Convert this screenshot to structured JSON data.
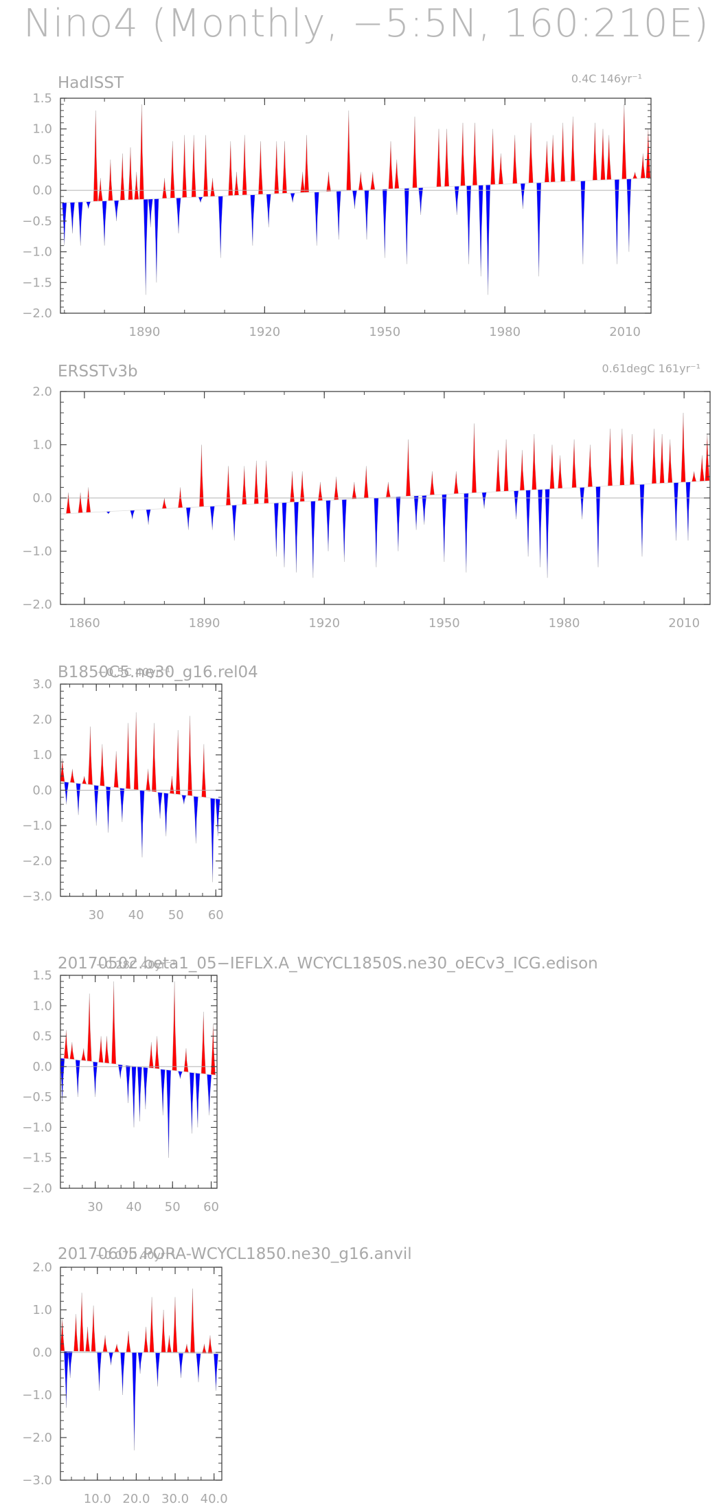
{
  "title": "Nino4 (Monthly, −5:5N, 160:210E)",
  "colors": {
    "positive": "#ff0000",
    "negative": "#0000ff",
    "axis": "#444444",
    "text": "#a8a8a8",
    "zero_line": "#b0b0b0"
  },
  "chart_data": [
    {
      "type": "area",
      "title": "HadISST",
      "trend_label": "0.4C 146yr⁻¹",
      "xlim": [
        1869,
        2016.5
      ],
      "ylim": [
        -2.0,
        1.5
      ],
      "xticks": [
        1890,
        1920,
        1950,
        1980,
        2010
      ],
      "xticklabels": [
        "1890",
        "1920",
        "1950",
        "1980",
        "2010"
      ],
      "yticks": [
        -2.0,
        -1.5,
        -1.0,
        -0.5,
        0.0,
        0.5,
        1.0,
        1.5
      ],
      "yticklabels": [
        "−2.0",
        "−1.5",
        "−1.0",
        "−0.5",
        "0.0",
        "0.5",
        "1.0",
        "1.5"
      ],
      "trend": {
        "x": [
          1870,
          2016
        ],
        "y": [
          -0.2,
          0.2
        ]
      },
      "series": [
        {
          "x": 1870,
          "y": -0.9
        },
        {
          "x": 1872,
          "y": -0.7
        },
        {
          "x": 1874,
          "y": -0.9
        },
        {
          "x": 1876,
          "y": -0.3
        },
        {
          "x": 1877.8,
          "y": 1.3
        },
        {
          "x": 1879,
          "y": 0.2
        },
        {
          "x": 1880,
          "y": -0.9
        },
        {
          "x": 1881.5,
          "y": 0.5
        },
        {
          "x": 1883,
          "y": -0.5
        },
        {
          "x": 1884.5,
          "y": 0.6
        },
        {
          "x": 1886.5,
          "y": 0.7
        },
        {
          "x": 1888,
          "y": 0.3
        },
        {
          "x": 1889.3,
          "y": 1.4
        },
        {
          "x": 1890.3,
          "y": -1.7
        },
        {
          "x": 1891.5,
          "y": -0.6
        },
        {
          "x": 1893,
          "y": -1.5
        },
        {
          "x": 1895,
          "y": 0.2
        },
        {
          "x": 1897,
          "y": 0.8
        },
        {
          "x": 1898.5,
          "y": -0.7
        },
        {
          "x": 1900,
          "y": 0.9
        },
        {
          "x": 1902.3,
          "y": 0.9
        },
        {
          "x": 1904,
          "y": -0.2
        },
        {
          "x": 1905.3,
          "y": 0.9
        },
        {
          "x": 1907,
          "y": 0.2
        },
        {
          "x": 1909,
          "y": -1.1
        },
        {
          "x": 1911.5,
          "y": 0.8
        },
        {
          "x": 1913,
          "y": 0.3
        },
        {
          "x": 1915,
          "y": 0.9
        },
        {
          "x": 1917,
          "y": -0.9
        },
        {
          "x": 1919,
          "y": 0.8
        },
        {
          "x": 1921,
          "y": -0.6
        },
        {
          "x": 1923,
          "y": 0.8
        },
        {
          "x": 1925,
          "y": 0.8
        },
        {
          "x": 1927,
          "y": -0.2
        },
        {
          "x": 1929.5,
          "y": 0.3
        },
        {
          "x": 1930.5,
          "y": 0.9
        },
        {
          "x": 1933,
          "y": -0.9
        },
        {
          "x": 1936,
          "y": 0.3
        },
        {
          "x": 1938.5,
          "y": -0.8
        },
        {
          "x": 1941,
          "y": 1.3
        },
        {
          "x": 1942.5,
          "y": -0.3
        },
        {
          "x": 1944,
          "y": 0.3
        },
        {
          "x": 1945.5,
          "y": -0.8
        },
        {
          "x": 1947,
          "y": 0.3
        },
        {
          "x": 1950,
          "y": -1.1
        },
        {
          "x": 1951.5,
          "y": 0.8
        },
        {
          "x": 1953,
          "y": 0.5
        },
        {
          "x": 1955.5,
          "y": -1.2
        },
        {
          "x": 1957.5,
          "y": 1.2
        },
        {
          "x": 1959,
          "y": -0.4
        },
        {
          "x": 1963.5,
          "y": 1.0
        },
        {
          "x": 1965.5,
          "y": 1.0
        },
        {
          "x": 1968,
          "y": -0.4
        },
        {
          "x": 1969.5,
          "y": 1.1
        },
        {
          "x": 1971,
          "y": -1.2
        },
        {
          "x": 1972.5,
          "y": 1.1
        },
        {
          "x": 1974,
          "y": -1.4
        },
        {
          "x": 1975.8,
          "y": -1.7
        },
        {
          "x": 1977,
          "y": 1.0
        },
        {
          "x": 1979,
          "y": 0.6
        },
        {
          "x": 1982.5,
          "y": 0.9
        },
        {
          "x": 1984.5,
          "y": -0.3
        },
        {
          "x": 1986.5,
          "y": 1.1
        },
        {
          "x": 1988.5,
          "y": -1.4
        },
        {
          "x": 1990.5,
          "y": 0.8
        },
        {
          "x": 1992,
          "y": 0.9
        },
        {
          "x": 1994.5,
          "y": 1.1
        },
        {
          "x": 1997,
          "y": 1.2
        },
        {
          "x": 1999.5,
          "y": -1.2
        },
        {
          "x": 2002.5,
          "y": 1.1
        },
        {
          "x": 2004.5,
          "y": 1.0
        },
        {
          "x": 2006,
          "y": 0.9
        },
        {
          "x": 2008,
          "y": -1.2
        },
        {
          "x": 2009.8,
          "y": 1.4
        },
        {
          "x": 2011,
          "y": -1.0
        },
        {
          "x": 2012.5,
          "y": 0.3
        },
        {
          "x": 2014.5,
          "y": 0.6
        },
        {
          "x": 2015.8,
          "y": 1.0
        }
      ]
    },
    {
      "type": "area",
      "title": "ERSSTv3b",
      "trend_label": "0.61degC 161yr⁻¹",
      "xlim": [
        1854,
        2016.5
      ],
      "ylim": [
        -2.0,
        2.0
      ],
      "xticks": [
        1860,
        1890,
        1920,
        1950,
        1980,
        2010
      ],
      "xticklabels": [
        "1860",
        "1890",
        "1920",
        "1950",
        "1980",
        "2010"
      ],
      "yticks": [
        -2.0,
        -1.0,
        0.0,
        1.0,
        2.0
      ],
      "yticklabels": [
        "−2.0",
        "−1.0",
        "0.0",
        "1.0",
        "2.0"
      ],
      "trend": {
        "x": [
          1854,
          2016
        ],
        "y": [
          -0.3,
          0.32
        ]
      },
      "series": [
        {
          "x": 1855,
          "y": -0.3
        },
        {
          "x": 1856,
          "y": 0.1
        },
        {
          "x": 1859,
          "y": 0.1
        },
        {
          "x": 1861,
          "y": 0.2
        },
        {
          "x": 1866,
          "y": -0.3
        },
        {
          "x": 1872,
          "y": -0.4
        },
        {
          "x": 1876,
          "y": -0.5
        },
        {
          "x": 1880,
          "y": 0.0
        },
        {
          "x": 1884,
          "y": 0.2
        },
        {
          "x": 1886,
          "y": -0.6
        },
        {
          "x": 1889.3,
          "y": 1.0
        },
        {
          "x": 1892,
          "y": -0.6
        },
        {
          "x": 1896,
          "y": 0.6
        },
        {
          "x": 1897.5,
          "y": -0.8
        },
        {
          "x": 1900,
          "y": 0.6
        },
        {
          "x": 1903,
          "y": 0.7
        },
        {
          "x": 1905.5,
          "y": 0.7
        },
        {
          "x": 1908,
          "y": -1.1
        },
        {
          "x": 1910,
          "y": -1.3
        },
        {
          "x": 1912,
          "y": 0.5
        },
        {
          "x": 1913,
          "y": -1.4
        },
        {
          "x": 1914.5,
          "y": 0.5
        },
        {
          "x": 1917.2,
          "y": -1.5
        },
        {
          "x": 1919,
          "y": 0.3
        },
        {
          "x": 1921,
          "y": -1.0
        },
        {
          "x": 1923,
          "y": 0.4
        },
        {
          "x": 1925,
          "y": -1.2
        },
        {
          "x": 1927.5,
          "y": 0.3
        },
        {
          "x": 1930.5,
          "y": 0.6
        },
        {
          "x": 1933,
          "y": -1.3
        },
        {
          "x": 1936,
          "y": 0.3
        },
        {
          "x": 1938.5,
          "y": -1.0
        },
        {
          "x": 1941,
          "y": 1.1
        },
        {
          "x": 1943,
          "y": -0.6
        },
        {
          "x": 1945,
          "y": -0.5
        },
        {
          "x": 1947,
          "y": 0.5
        },
        {
          "x": 1950,
          "y": -1.2
        },
        {
          "x": 1953,
          "y": 0.5
        },
        {
          "x": 1955.5,
          "y": -1.4
        },
        {
          "x": 1957.5,
          "y": 1.4
        },
        {
          "x": 1960,
          "y": -0.2
        },
        {
          "x": 1963.5,
          "y": 0.9
        },
        {
          "x": 1965.5,
          "y": 1.1
        },
        {
          "x": 1968,
          "y": -0.4
        },
        {
          "x": 1969.5,
          "y": 0.9
        },
        {
          "x": 1971,
          "y": -1.1
        },
        {
          "x": 1972.5,
          "y": 1.2
        },
        {
          "x": 1974,
          "y": -1.3
        },
        {
          "x": 1975.8,
          "y": -1.5
        },
        {
          "x": 1977,
          "y": 1.0
        },
        {
          "x": 1979,
          "y": 0.8
        },
        {
          "x": 1982.5,
          "y": 1.1
        },
        {
          "x": 1984.5,
          "y": -0.4
        },
        {
          "x": 1986.5,
          "y": 1.0
        },
        {
          "x": 1988.5,
          "y": -1.3
        },
        {
          "x": 1991.5,
          "y": 1.3
        },
        {
          "x": 1994.5,
          "y": 1.3
        },
        {
          "x": 1997,
          "y": 1.2
        },
        {
          "x": 1999.5,
          "y": -1.1
        },
        {
          "x": 2002.5,
          "y": 1.3
        },
        {
          "x": 2004.5,
          "y": 1.2
        },
        {
          "x": 2006.5,
          "y": 1.1
        },
        {
          "x": 2008,
          "y": -0.8
        },
        {
          "x": 2009.8,
          "y": 1.6
        },
        {
          "x": 2011,
          "y": -0.8
        },
        {
          "x": 2012.5,
          "y": 0.5
        },
        {
          "x": 2014.5,
          "y": 0.8
        },
        {
          "x": 2015.8,
          "y": 1.2
        }
      ]
    },
    {
      "type": "area",
      "title": "B1850C5.ne30_g16.rel04",
      "trend_label": "−0.5C 40yr⁻¹",
      "xlim": [
        21,
        61.5
      ],
      "ylim": [
        -3.0,
        3.0
      ],
      "xticks": [
        30,
        40,
        50,
        60
      ],
      "xticklabels": [
        "30",
        "40",
        "50",
        "60"
      ],
      "yticks": [
        -3.0,
        -2.0,
        -1.0,
        0.0,
        1.0,
        2.0,
        3.0
      ],
      "yticklabels": [
        "−3.0",
        "−2.0",
        "−1.0",
        "0.0",
        "1.0",
        "2.0",
        "3.0"
      ],
      "trend": {
        "x": [
          21,
          61
        ],
        "y": [
          0.25,
          -0.25
        ]
      },
      "series": [
        {
          "x": 21.5,
          "y": 0.9
        },
        {
          "x": 22.5,
          "y": -0.4
        },
        {
          "x": 24,
          "y": 0.6
        },
        {
          "x": 25.5,
          "y": -0.7
        },
        {
          "x": 27,
          "y": 0.4
        },
        {
          "x": 28.5,
          "y": 1.8
        },
        {
          "x": 30,
          "y": -1.0
        },
        {
          "x": 31.5,
          "y": 1.3
        },
        {
          "x": 33,
          "y": -1.2
        },
        {
          "x": 35,
          "y": 1.1
        },
        {
          "x": 36.5,
          "y": -0.9
        },
        {
          "x": 38,
          "y": 1.9
        },
        {
          "x": 40,
          "y": 2.2
        },
        {
          "x": 41.5,
          "y": -1.9
        },
        {
          "x": 43,
          "y": 0.6
        },
        {
          "x": 44.5,
          "y": 1.9
        },
        {
          "x": 46,
          "y": -0.8
        },
        {
          "x": 47.5,
          "y": -1.3
        },
        {
          "x": 49,
          "y": 0.4
        },
        {
          "x": 50.5,
          "y": 1.7
        },
        {
          "x": 52,
          "y": -0.4
        },
        {
          "x": 53.5,
          "y": 2.1
        },
        {
          "x": 55,
          "y": -1.5
        },
        {
          "x": 57,
          "y": 1.3
        },
        {
          "x": 59.2,
          "y": -2.6
        },
        {
          "x": 60.5,
          "y": -1.3
        }
      ]
    },
    {
      "type": "area",
      "title": "20170502.beta1_05−IEFLX.A_WCYCL1850S.ne30_oECv3_ICG.edison",
      "trend_label": "−0.28C 40yr⁻¹",
      "xlim": [
        21,
        61.5
      ],
      "ylim": [
        -2.0,
        1.5
      ],
      "xticks": [
        30,
        40,
        50,
        60
      ],
      "xticklabels": [
        "30",
        "40",
        "50",
        "60"
      ],
      "yticks": [
        -2.0,
        -1.5,
        -1.0,
        -0.5,
        0.0,
        0.5,
        1.0,
        1.5
      ],
      "yticklabels": [
        "−2.0",
        "−1.5",
        "−1.0",
        "−0.5",
        "0.0",
        "0.5",
        "1.0",
        "1.5"
      ],
      "trend": {
        "x": [
          21,
          61
        ],
        "y": [
          0.14,
          -0.14
        ]
      },
      "series": [
        {
          "x": 21.5,
          "y": -0.6
        },
        {
          "x": 22.5,
          "y": 0.6
        },
        {
          "x": 24,
          "y": 0.4
        },
        {
          "x": 25.5,
          "y": -0.5
        },
        {
          "x": 27,
          "y": 0.3
        },
        {
          "x": 28.5,
          "y": 1.2
        },
        {
          "x": 30,
          "y": -0.5
        },
        {
          "x": 31.5,
          "y": 0.5
        },
        {
          "x": 33,
          "y": 0.5
        },
        {
          "x": 34.8,
          "y": 1.4
        },
        {
          "x": 36.5,
          "y": -0.2
        },
        {
          "x": 38.5,
          "y": -0.6
        },
        {
          "x": 40,
          "y": -1.0
        },
        {
          "x": 41.5,
          "y": -0.9
        },
        {
          "x": 43,
          "y": -0.7
        },
        {
          "x": 44.5,
          "y": 0.4
        },
        {
          "x": 46,
          "y": 0.5
        },
        {
          "x": 47.5,
          "y": -0.8
        },
        {
          "x": 49,
          "y": -1.5
        },
        {
          "x": 50.5,
          "y": 1.4
        },
        {
          "x": 52,
          "y": -0.2
        },
        {
          "x": 53.5,
          "y": 0.3
        },
        {
          "x": 55,
          "y": -1.1
        },
        {
          "x": 56.5,
          "y": -1.0
        },
        {
          "x": 58,
          "y": 0.9
        },
        {
          "x": 59.5,
          "y": -0.8
        },
        {
          "x": 60.5,
          "y": 0.7
        }
      ]
    },
    {
      "type": "area",
      "title": "20170605.PORA-WCYCL1850.ne30_g16.anvil",
      "trend_label": "−0.07C 40yr⁻¹",
      "xlim": [
        0.5,
        42
      ],
      "ylim": [
        -3.0,
        2.0
      ],
      "xticks": [
        10.0,
        20.0,
        30.0,
        40.0
      ],
      "xticklabels": [
        "10.0",
        "20.0",
        "30.0",
        "40.0"
      ],
      "yticks": [
        -3.0,
        -2.0,
        -1.0,
        0.0,
        1.0,
        2.0
      ],
      "yticklabels": [
        "−3.0",
        "−2.0",
        "−1.0",
        "0.0",
        "1.0",
        "2.0"
      ],
      "trend": {
        "x": [
          0.5,
          41
        ],
        "y": [
          0.03,
          -0.03
        ]
      },
      "series": [
        {
          "x": 1,
          "y": 0.8
        },
        {
          "x": 2,
          "y": -1.3
        },
        {
          "x": 3,
          "y": -0.6
        },
        {
          "x": 4.5,
          "y": 0.9
        },
        {
          "x": 6,
          "y": 1.4
        },
        {
          "x": 7.5,
          "y": 0.6
        },
        {
          "x": 9,
          "y": 1.1
        },
        {
          "x": 10.5,
          "y": -0.9
        },
        {
          "x": 12,
          "y": 0.4
        },
        {
          "x": 13.5,
          "y": -0.3
        },
        {
          "x": 15,
          "y": 0.2
        },
        {
          "x": 16.5,
          "y": -1.0
        },
        {
          "x": 18,
          "y": 0.5
        },
        {
          "x": 19.5,
          "y": -2.3
        },
        {
          "x": 21,
          "y": -0.5
        },
        {
          "x": 22.5,
          "y": 0.6
        },
        {
          "x": 24,
          "y": 1.3
        },
        {
          "x": 25.5,
          "y": -0.8
        },
        {
          "x": 27,
          "y": 1.0
        },
        {
          "x": 28.5,
          "y": 0.4
        },
        {
          "x": 30,
          "y": 1.3
        },
        {
          "x": 31.5,
          "y": -0.6
        },
        {
          "x": 33,
          "y": 0.2
        },
        {
          "x": 34.5,
          "y": 1.5
        },
        {
          "x": 36,
          "y": -0.7
        },
        {
          "x": 37.5,
          "y": 0.2
        },
        {
          "x": 39,
          "y": 0.4
        },
        {
          "x": 40.5,
          "y": -0.9
        }
      ]
    }
  ]
}
